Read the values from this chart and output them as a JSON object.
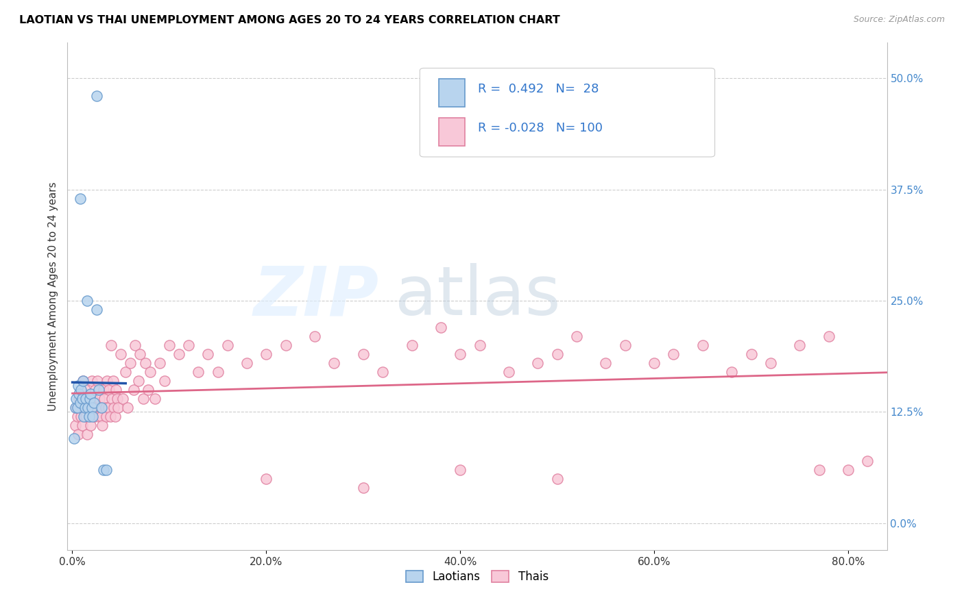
{
  "title": "LAOTIAN VS THAI UNEMPLOYMENT AMONG AGES 20 TO 24 YEARS CORRELATION CHART",
  "source": "Source: ZipAtlas.com",
  "xlabel_ticks": [
    "0.0%",
    "20.0%",
    "40.0%",
    "60.0%",
    "80.0%"
  ],
  "xlabel_vals": [
    0.0,
    0.2,
    0.4,
    0.6,
    0.8
  ],
  "ylabel_ticks_right": [
    "50.0%",
    "37.5%",
    "25.0%",
    "12.5%",
    "0.0%"
  ],
  "ylabel_vals": [
    0.0,
    0.125,
    0.25,
    0.375,
    0.5
  ],
  "ylabel_label": "Unemployment Among Ages 20 to 24 years",
  "laotian_color": "#b8d4ee",
  "laotian_edge_color": "#6699cc",
  "thai_color": "#f8c8d8",
  "thai_edge_color": "#e080a0",
  "trend_laotian_solid_color": "#2255aa",
  "trend_laotian_dash_color": "#88bbdd",
  "trend_thai_color": "#dd6688",
  "R_laotian": 0.492,
  "N_laotian": 28,
  "R_thai": -0.028,
  "N_thai": 100,
  "lao_x": [
    0.002,
    0.003,
    0.004,
    0.005,
    0.006,
    0.007,
    0.008,
    0.009,
    0.01,
    0.011,
    0.012,
    0.013,
    0.014,
    0.015,
    0.016,
    0.017,
    0.018,
    0.019,
    0.02,
    0.021,
    0.022,
    0.025,
    0.027,
    0.03,
    0.032,
    0.035,
    0.025,
    0.008
  ],
  "lao_y": [
    0.095,
    0.13,
    0.14,
    0.13,
    0.155,
    0.145,
    0.135,
    0.15,
    0.14,
    0.16,
    0.12,
    0.13,
    0.14,
    0.25,
    0.13,
    0.12,
    0.14,
    0.145,
    0.13,
    0.12,
    0.135,
    0.24,
    0.15,
    0.13,
    0.06,
    0.06,
    0.48,
    0.365
  ],
  "thai_x": [
    0.003,
    0.004,
    0.005,
    0.006,
    0.007,
    0.008,
    0.009,
    0.01,
    0.011,
    0.012,
    0.013,
    0.014,
    0.015,
    0.016,
    0.017,
    0.018,
    0.019,
    0.02,
    0.021,
    0.022,
    0.023,
    0.024,
    0.025,
    0.026,
    0.027,
    0.028,
    0.029,
    0.03,
    0.031,
    0.032,
    0.033,
    0.034,
    0.035,
    0.036,
    0.037,
    0.038,
    0.039,
    0.04,
    0.041,
    0.042,
    0.043,
    0.044,
    0.045,
    0.046,
    0.047,
    0.05,
    0.052,
    0.055,
    0.057,
    0.06,
    0.063,
    0.065,
    0.068,
    0.07,
    0.073,
    0.075,
    0.078,
    0.08,
    0.085,
    0.09,
    0.095,
    0.1,
    0.11,
    0.12,
    0.13,
    0.14,
    0.15,
    0.16,
    0.18,
    0.2,
    0.22,
    0.25,
    0.27,
    0.3,
    0.32,
    0.35,
    0.38,
    0.4,
    0.42,
    0.45,
    0.48,
    0.5,
    0.52,
    0.55,
    0.57,
    0.6,
    0.62,
    0.65,
    0.68,
    0.7,
    0.72,
    0.75,
    0.77,
    0.78,
    0.8,
    0.82,
    0.5,
    0.4,
    0.3,
    0.2
  ],
  "thai_y": [
    0.11,
    0.13,
    0.12,
    0.1,
    0.14,
    0.13,
    0.12,
    0.11,
    0.16,
    0.13,
    0.15,
    0.12,
    0.1,
    0.14,
    0.13,
    0.12,
    0.11,
    0.16,
    0.14,
    0.13,
    0.12,
    0.15,
    0.13,
    0.16,
    0.12,
    0.14,
    0.13,
    0.12,
    0.11,
    0.15,
    0.14,
    0.13,
    0.12,
    0.16,
    0.13,
    0.15,
    0.12,
    0.2,
    0.14,
    0.16,
    0.13,
    0.12,
    0.15,
    0.14,
    0.13,
    0.19,
    0.14,
    0.17,
    0.13,
    0.18,
    0.15,
    0.2,
    0.16,
    0.19,
    0.14,
    0.18,
    0.15,
    0.17,
    0.14,
    0.18,
    0.16,
    0.2,
    0.19,
    0.2,
    0.17,
    0.19,
    0.17,
    0.2,
    0.18,
    0.19,
    0.2,
    0.21,
    0.18,
    0.19,
    0.17,
    0.2,
    0.22,
    0.19,
    0.2,
    0.17,
    0.18,
    0.19,
    0.21,
    0.18,
    0.2,
    0.18,
    0.19,
    0.2,
    0.17,
    0.19,
    0.18,
    0.2,
    0.06,
    0.21,
    0.06,
    0.07,
    0.05,
    0.06,
    0.04,
    0.05
  ],
  "xlim": [
    -0.005,
    0.84
  ],
  "ylim": [
    -0.03,
    0.54
  ]
}
